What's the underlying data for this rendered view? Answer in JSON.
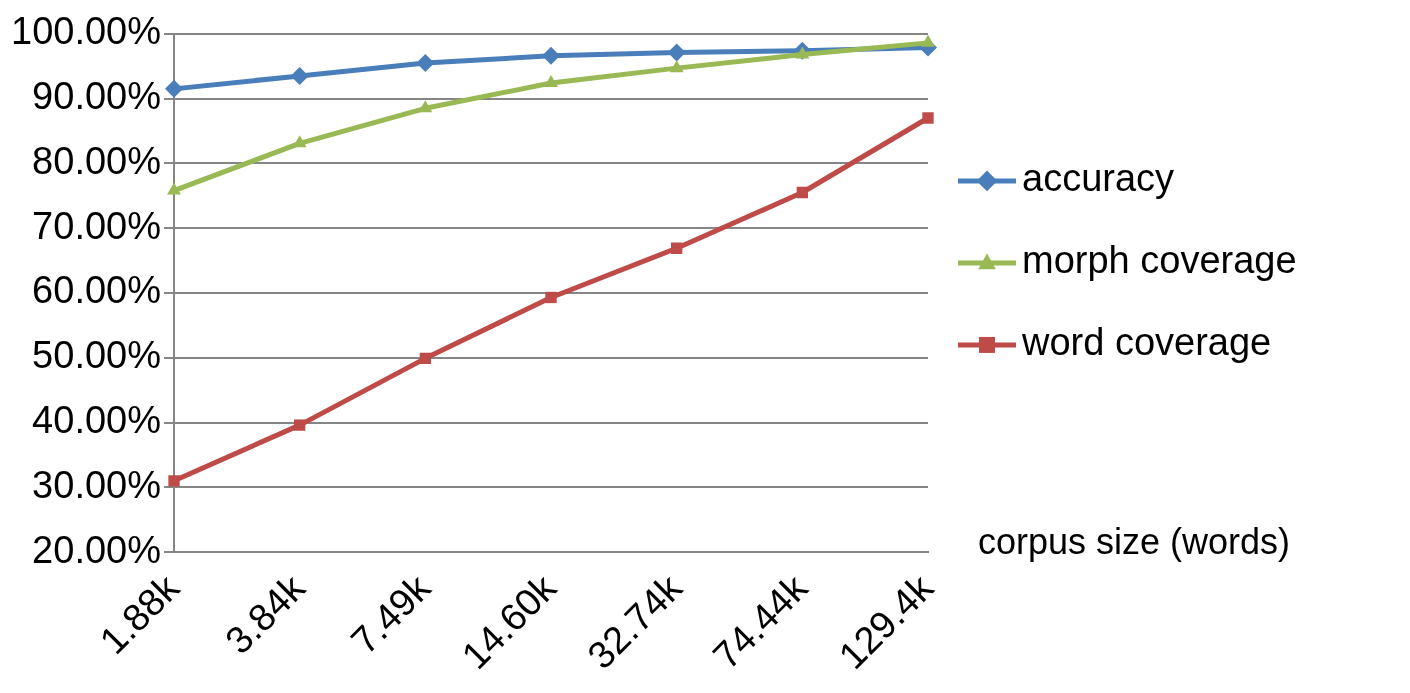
{
  "chart_data": {
    "type": "line",
    "xlabel": "corpus size (words)",
    "categories": [
      "1.88k",
      "3.84k",
      "7.49k",
      "14.60k",
      "32.74k",
      "74.44k",
      "129.4k"
    ],
    "series": [
      {
        "name": "accuracy",
        "color": "#4a7ebb",
        "marker": "diamond",
        "values": [
          91.5,
          93.5,
          95.5,
          96.6,
          97.1,
          97.4,
          97.9
        ]
      },
      {
        "name": "morph coverage",
        "color": "#98b954",
        "marker": "triangle",
        "values": [
          75.8,
          83.1,
          88.5,
          92.4,
          94.7,
          96.8,
          98.6
        ]
      },
      {
        "name": "word coverage",
        "color": "#be4b48",
        "marker": "square",
        "values": [
          31.0,
          39.6,
          49.9,
          59.3,
          66.9,
          75.5,
          87.0
        ]
      }
    ],
    "ylim": [
      20,
      100
    ],
    "yticks": [
      {
        "value": 20,
        "label": "20.00%"
      },
      {
        "value": 30,
        "label": "30.00%"
      },
      {
        "value": 40,
        "label": "40.00%"
      },
      {
        "value": 50,
        "label": "50.00%"
      },
      {
        "value": 60,
        "label": "60.00%"
      },
      {
        "value": 70,
        "label": "70.00%"
      },
      {
        "value": 80,
        "label": "80.00%"
      },
      {
        "value": 90,
        "label": "90.00%"
      },
      {
        "value": 100,
        "label": "100.00%"
      }
    ],
    "grid": "y",
    "legend": "right",
    "line_style": "solid"
  }
}
